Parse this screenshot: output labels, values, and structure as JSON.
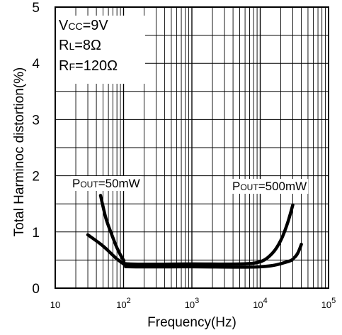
{
  "chart_data": {
    "type": "line",
    "xlabel": "Frequency(Hz)",
    "ylabel": "Total Harminoc distortion(%)",
    "x_scale": "log",
    "xlim": [
      10,
      100000
    ],
    "ylim": [
      0,
      5
    ],
    "grid": true,
    "x_ticks": [
      {
        "value": 10,
        "base": "10",
        "exp": ""
      },
      {
        "value": 100,
        "base": "10",
        "exp": "2"
      },
      {
        "value": 1000,
        "base": "10",
        "exp": "3"
      },
      {
        "value": 10000,
        "base": "10",
        "exp": "4"
      },
      {
        "value": 100000,
        "base": "10",
        "exp": "5"
      }
    ],
    "y_ticks": [
      "0",
      "1",
      "2",
      "3",
      "4",
      "5"
    ],
    "conditions": {
      "vcc": {
        "main": "V",
        "sub": "CC",
        "rest": "=9V"
      },
      "rl": {
        "main": "R",
        "sub": "L",
        "rest": "=8Ω"
      },
      "rf": {
        "main": "R",
        "sub": "F",
        "rest": "=120Ω"
      }
    },
    "series": [
      {
        "name": "POUT=50mW",
        "label": {
          "main": "P",
          "sub": "OUT",
          "rest": "=50mW"
        },
        "x": [
          46,
          55,
          65,
          80,
          100,
          120,
          1000,
          5000,
          10000,
          15000,
          20000,
          25000,
          30000
        ],
        "y": [
          1.65,
          1.25,
          1.0,
          0.72,
          0.5,
          0.43,
          0.43,
          0.43,
          0.47,
          0.62,
          0.85,
          1.15,
          1.48
        ]
      },
      {
        "name": "POUT=500mW",
        "label": {
          "main": "P",
          "sub": "OUT",
          "rest": "=500mW"
        },
        "x": [
          30,
          50,
          80,
          110,
          130,
          1000,
          10000,
          25000,
          32000,
          36000,
          40000
        ],
        "y": [
          0.95,
          0.75,
          0.52,
          0.4,
          0.38,
          0.38,
          0.38,
          0.47,
          0.55,
          0.64,
          0.78
        ]
      }
    ]
  }
}
